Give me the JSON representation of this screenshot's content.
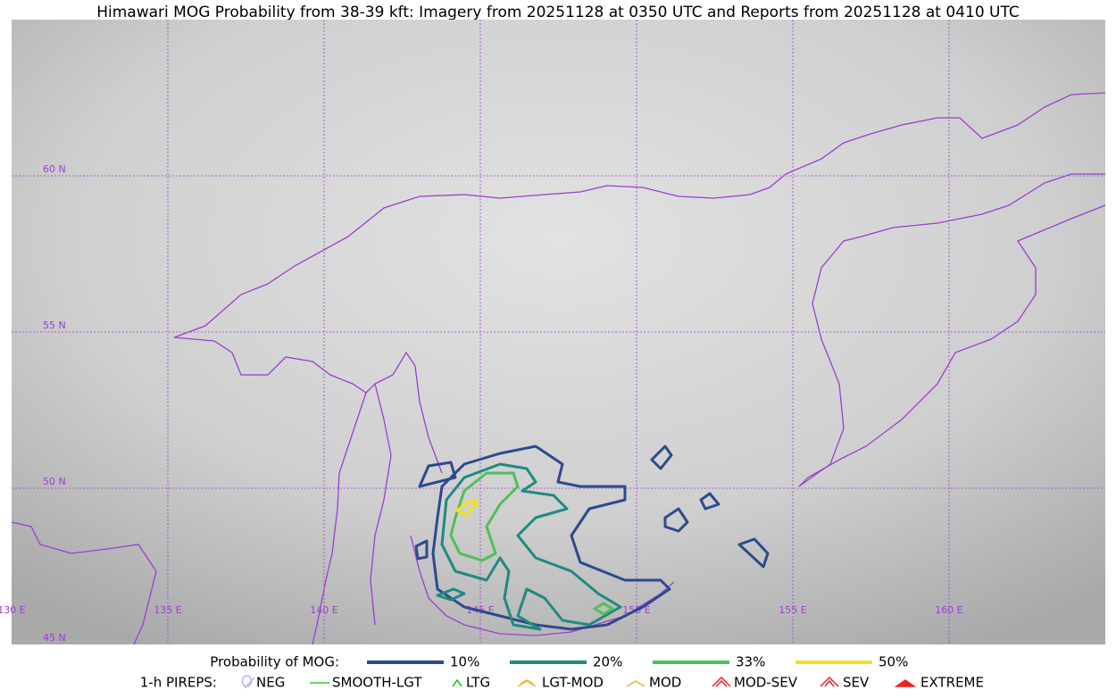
{
  "title": "Himawari MOG Probability from 38-39 kft: Imagery from 20251128 at 0350 UTC and Reports from 20251128 at 0410 UTC",
  "grid_labels": {
    "latitudes": [
      "60 N",
      "55 N",
      "50 N",
      "45 N"
    ],
    "longitudes": [
      "130 E",
      "135 E",
      "140 E",
      "145 E",
      "150 E",
      "155 E",
      "160 E"
    ]
  },
  "legend": {
    "probability": {
      "label": "Probability of MOG:",
      "items": [
        {
          "label": "10%",
          "color": "#2e4a8c"
        },
        {
          "label": "20%",
          "color": "#1f8a80"
        },
        {
          "label": "33%",
          "color": "#4cc05a"
        },
        {
          "label": "50%",
          "color": "#f5e020"
        }
      ]
    },
    "pireps": {
      "label": "1-h PIREPS:",
      "items": [
        {
          "label": "NEG",
          "color": "#b4b4ee"
        },
        {
          "label": "SMOOTH-LGT",
          "color": "#33cc33"
        },
        {
          "label": "LTG",
          "color": "#00cc00"
        },
        {
          "label": "LGT-MOD",
          "color": "#f0b030"
        },
        {
          "label": "MOD",
          "color": "#f0b030"
        },
        {
          "label": "MOD-SEV",
          "color": "#ee2222"
        },
        {
          "label": "SEV",
          "color": "#ee2222"
        },
        {
          "label": "EXTREME",
          "color": "#ee2222"
        }
      ]
    }
  }
}
